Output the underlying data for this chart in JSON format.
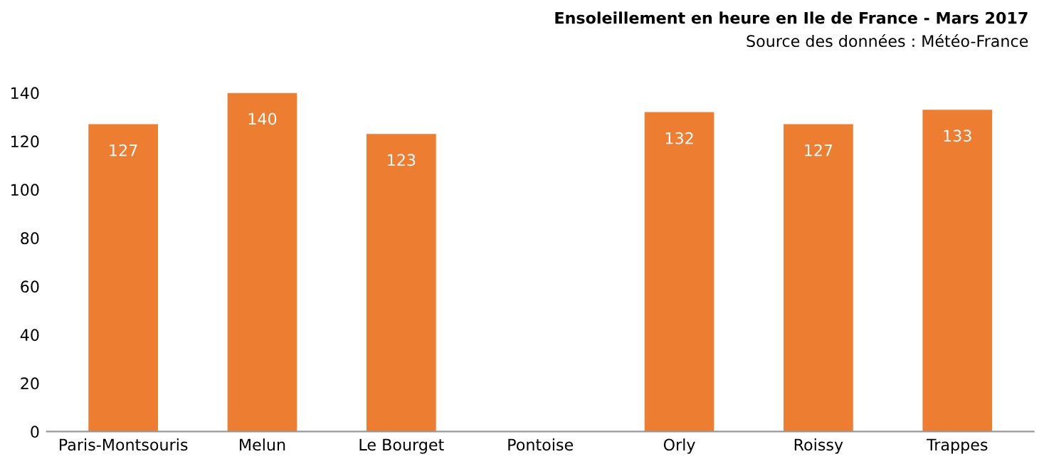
{
  "chart_data": {
    "type": "bar",
    "title": "Ensoleillement en heure en Ile de France - Mars 2017",
    "annotations": [
      "Source des données : Météo-France"
    ],
    "categories": [
      "Paris-Montsouris",
      "Melun",
      "Le Bourget",
      "Pontoise",
      "Orly",
      "Roissy",
      "Trappes"
    ],
    "values": [
      127,
      140,
      123,
      null,
      132,
      127,
      133
    ],
    "color": "#ed7d31",
    "ylim": [
      0,
      140
    ],
    "yticks": [
      0,
      20,
      40,
      60,
      80,
      100,
      120,
      140
    ],
    "data_labels": true,
    "grid": false,
    "legend": false
  }
}
